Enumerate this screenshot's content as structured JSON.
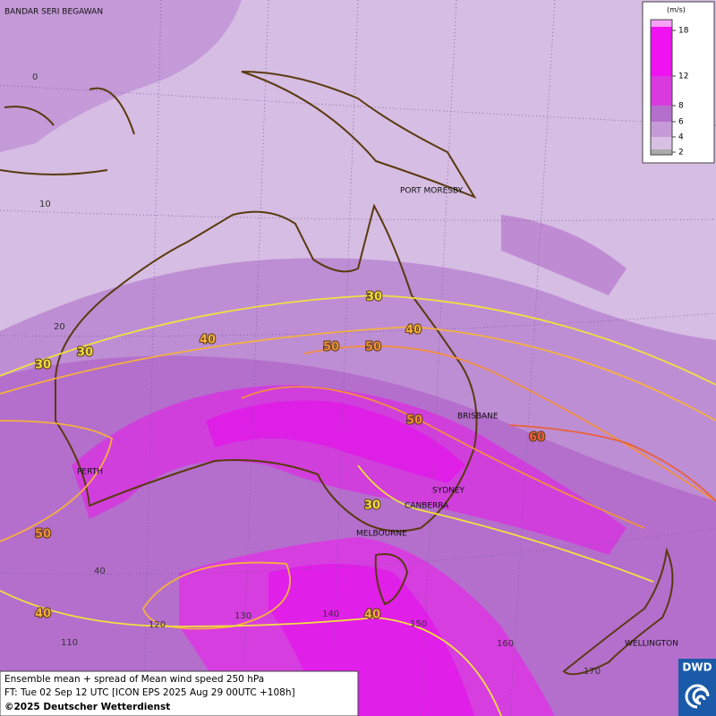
{
  "map": {
    "cities": [
      "BANDAR SERI BEGAWAN",
      "PORT MORESBY",
      "BRISBANE",
      "PERTH",
      "SYDNEY",
      "CANBERRA",
      "MELBOURNE",
      "WELLINGTON"
    ],
    "contour_labels": [
      30,
      30,
      30,
      40,
      40,
      50,
      50,
      50,
      60,
      30,
      50,
      40,
      40
    ],
    "grid_labels": [
      0,
      10,
      20,
      40,
      110,
      120,
      130,
      140,
      150,
      160,
      170
    ],
    "legend": {
      "unit": "(m/s)",
      "ticks": [
        18,
        12,
        8,
        6,
        4,
        2
      ]
    }
  },
  "caption": {
    "lines": [
      "Ensemble mean + spread of Mean wind speed 250 hPa",
      "FT: Tue 02 Sep 12 UTC [ICON EPS 2025 Aug 29 00UTC +108h]",
      "©2025 Deutscher Wetterdienst"
    ]
  },
  "logo": "DWD"
}
